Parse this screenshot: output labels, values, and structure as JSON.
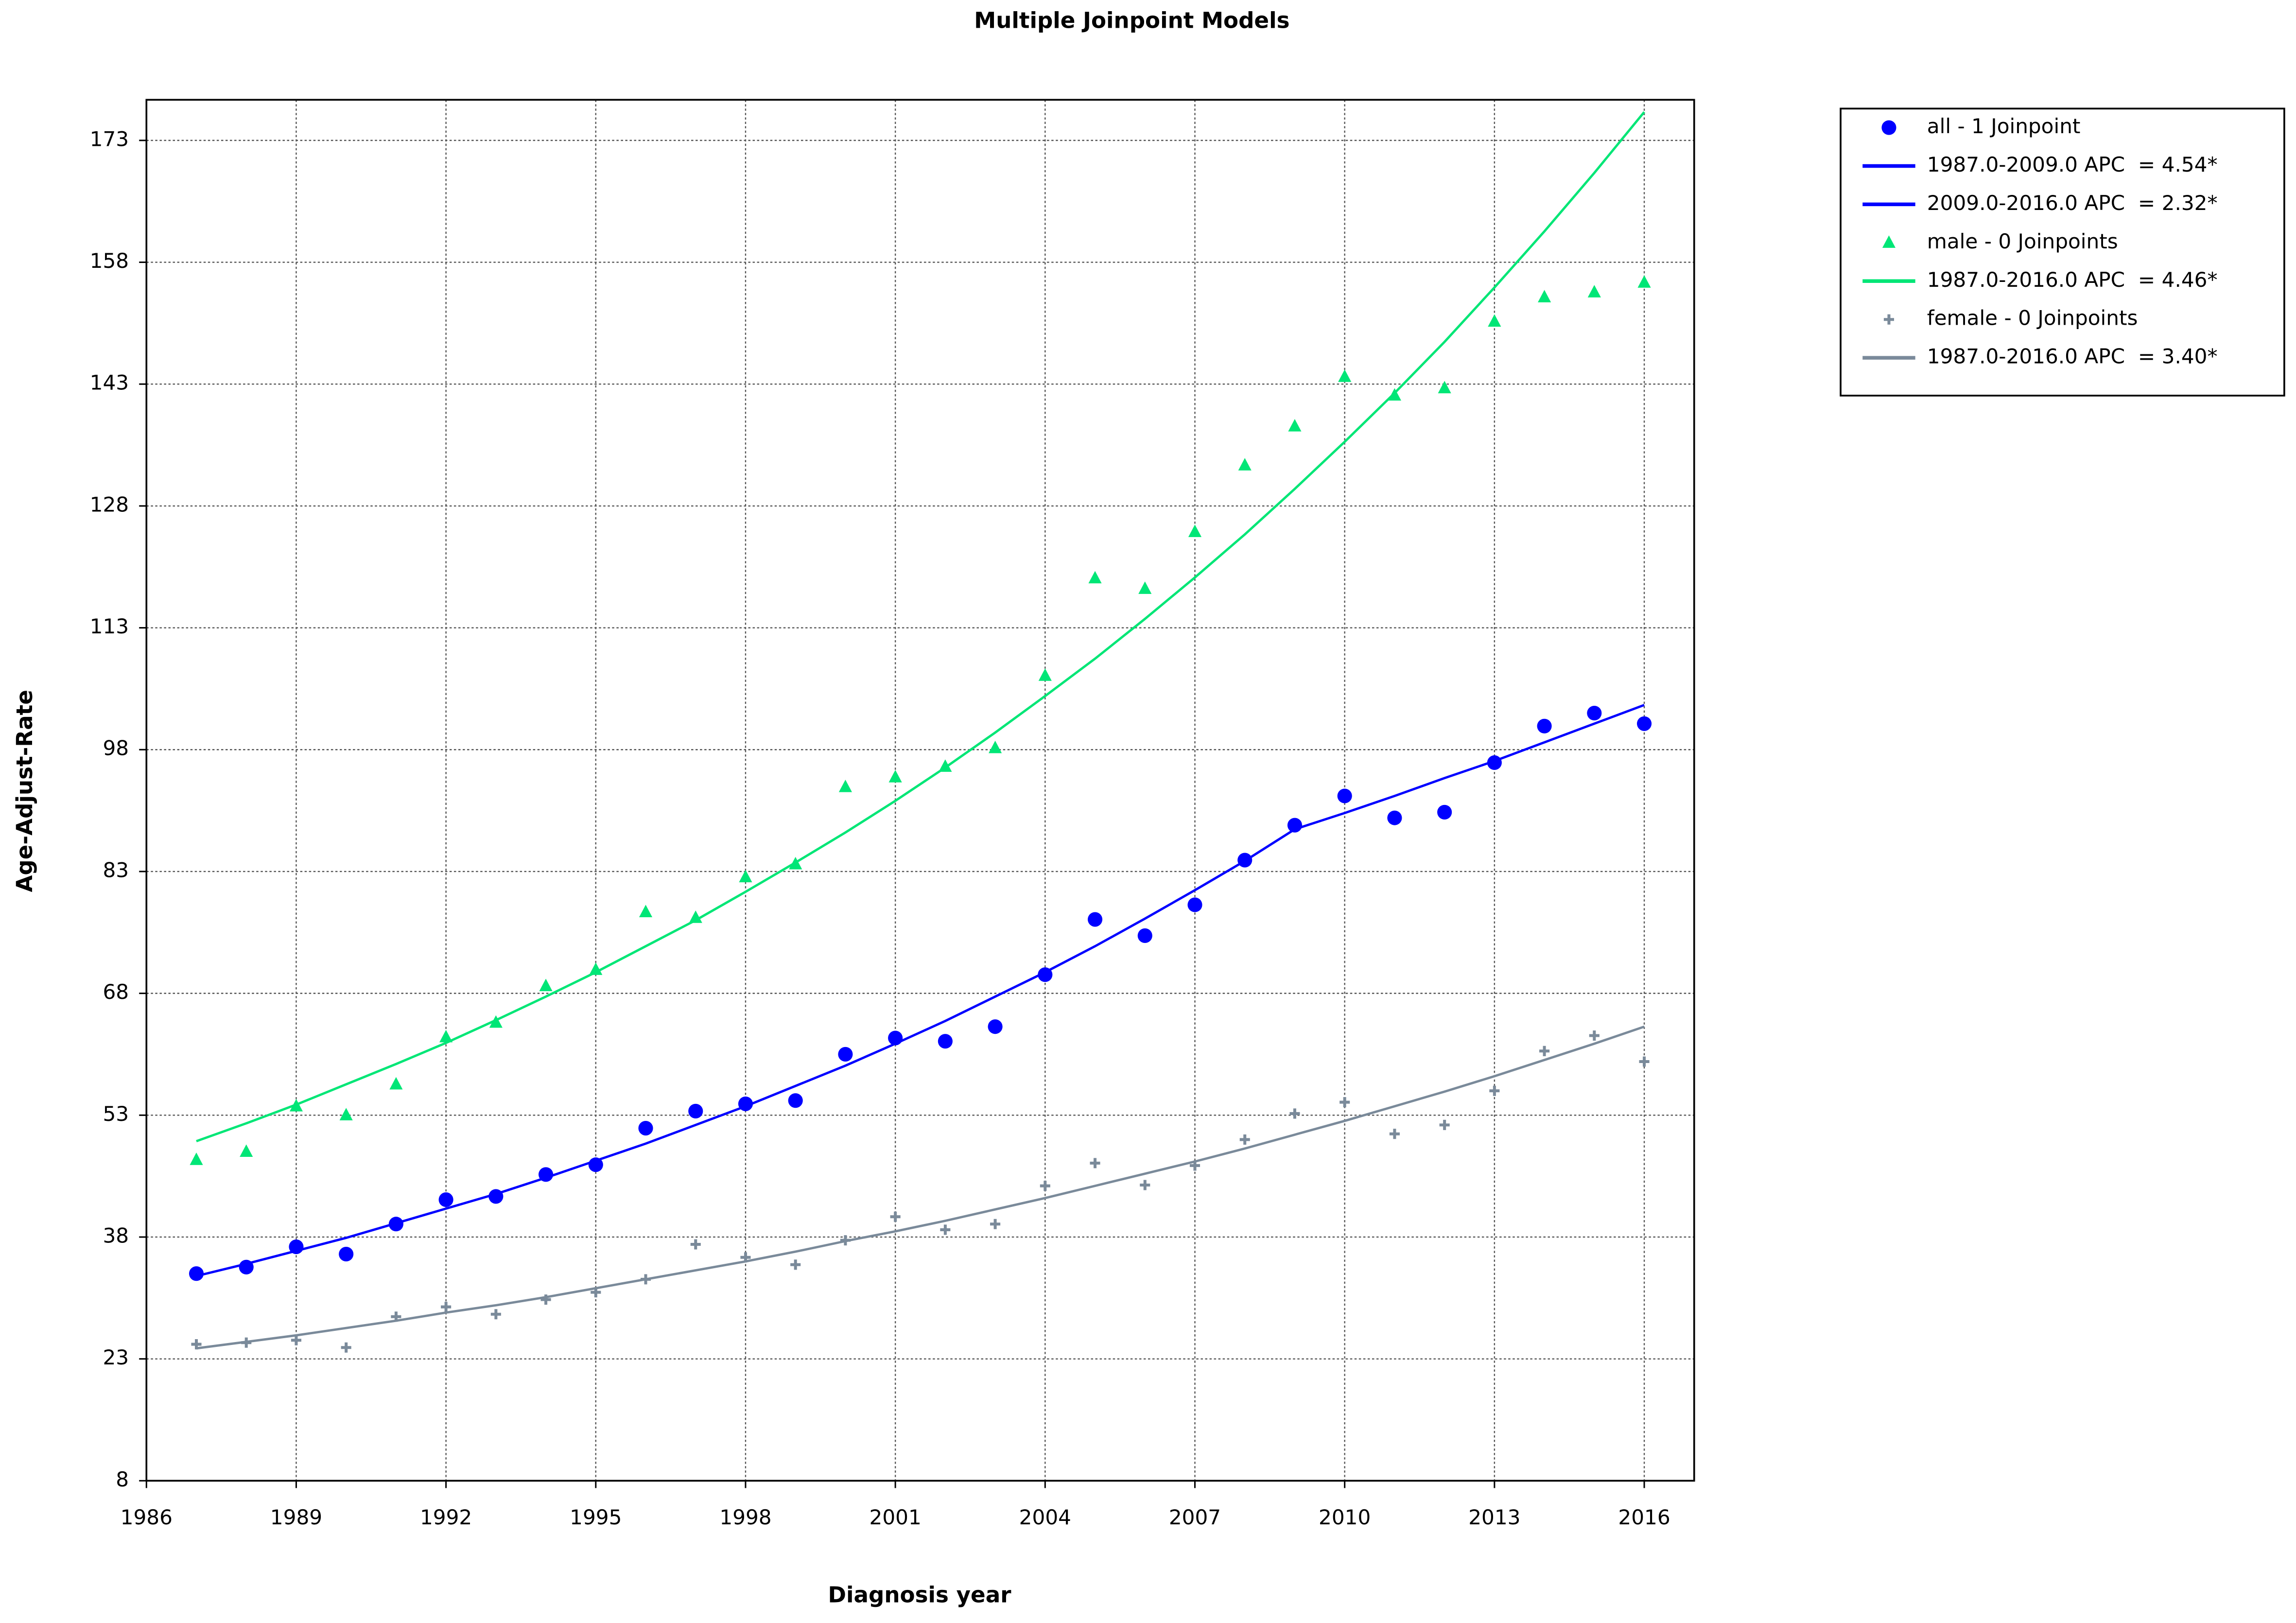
{
  "chart_data": {
    "type": "scatter",
    "title": "Multiple Joinpoint Models",
    "xlabel": "Diagnosis year",
    "ylabel": "Age-Adjust-Rate",
    "xlim": [
      1986,
      2017
    ],
    "ylim": [
      8,
      178
    ],
    "xticks": [
      1986,
      1989,
      1992,
      1995,
      1998,
      2001,
      2004,
      2007,
      2010,
      2013,
      2016
    ],
    "yticks": [
      8,
      23,
      38,
      53,
      68,
      83,
      98,
      113,
      128,
      143,
      158,
      173
    ],
    "grid": true,
    "legend": "right",
    "series": [
      {
        "name": "all - 1 Joinpoint",
        "color": "#0000ff",
        "marker": "circle",
        "x": [
          1987,
          1988,
          1989,
          1990,
          1991,
          1992,
          1993,
          1994,
          1995,
          1996,
          1997,
          1998,
          1999,
          2000,
          2001,
          2002,
          2003,
          2004,
          2005,
          2006,
          2007,
          2008,
          2009,
          2010,
          2011,
          2012,
          2013,
          2014,
          2015,
          2016
        ],
        "values": [
          33.5,
          34.3,
          36.8,
          35.9,
          39.6,
          42.6,
          43.0,
          45.7,
          46.9,
          51.4,
          53.5,
          54.4,
          54.8,
          60.5,
          62.5,
          62.1,
          63.9,
          70.3,
          77.1,
          75.1,
          78.9,
          84.4,
          88.7,
          92.3,
          89.6,
          90.3,
          96.4,
          100.9,
          102.5,
          101.2
        ]
      },
      {
        "name": "1987.0-2009.0 APC  = 4.54*",
        "color": "#0000ff",
        "marker": "line",
        "x": [
          1987,
          1988,
          1989,
          1990,
          1991,
          1992,
          1993,
          1994,
          1995,
          1996,
          1997,
          1998,
          1999,
          2000,
          2001,
          2002,
          2003,
          2004,
          2005,
          2006,
          2007,
          2008,
          2009
        ],
        "values": [
          33.2,
          34.7,
          36.3,
          37.9,
          39.7,
          41.5,
          43.3,
          45.3,
          47.4,
          49.5,
          51.8,
          54.1,
          56.6,
          59.1,
          61.8,
          64.6,
          67.6,
          70.6,
          73.8,
          77.2,
          80.7,
          84.3,
          88.2
        ]
      },
      {
        "name": "2009.0-2016.0 APC  = 2.32*",
        "color": "#0000ff",
        "marker": "line",
        "x": [
          2009,
          2010,
          2011,
          2012,
          2013,
          2014,
          2015,
          2016
        ],
        "values": [
          88.2,
          90.2,
          92.3,
          94.5,
          96.6,
          98.9,
          101.2,
          103.5
        ]
      },
      {
        "name": "male - 0 Joinpoints",
        "color": "#00e676",
        "marker": "triangle",
        "x": [
          1987,
          1988,
          1989,
          1990,
          1991,
          1992,
          1993,
          1994,
          1995,
          1996,
          1997,
          1998,
          1999,
          2000,
          2001,
          2002,
          2003,
          2004,
          2005,
          2006,
          2007,
          2008,
          2009,
          2010,
          2011,
          2012,
          2013,
          2014,
          2015,
          2016
        ],
        "values": [
          47.5,
          48.5,
          54.1,
          53.0,
          56.8,
          62.6,
          64.4,
          68.9,
          70.9,
          78.0,
          77.3,
          82.3,
          83.9,
          93.4,
          94.6,
          95.9,
          98.2,
          107.1,
          119.1,
          117.8,
          124.8,
          133.0,
          137.8,
          143.9,
          141.6,
          142.5,
          150.7,
          153.7,
          154.3,
          155.5
        ]
      },
      {
        "name": "1987.0-2016.0 APC  = 4.46*",
        "color": "#00e676",
        "marker": "line",
        "x": [
          1987,
          1988,
          1989,
          1990,
          1991,
          1992,
          1993,
          1994,
          1995,
          1996,
          1997,
          1998,
          1999,
          2000,
          2001,
          2002,
          2003,
          2004,
          2005,
          2006,
          2007,
          2008,
          2009,
          2010,
          2011,
          2012,
          2013,
          2014,
          2015,
          2016
        ],
        "values": [
          49.8,
          52.0,
          54.3,
          56.8,
          59.3,
          61.9,
          64.7,
          67.6,
          70.6,
          73.8,
          77.0,
          80.5,
          84.1,
          87.8,
          91.7,
          95.8,
          100.1,
          104.6,
          109.2,
          114.1,
          119.2,
          124.5,
          130.1,
          135.9,
          141.9,
          148.2,
          154.9,
          161.8,
          169.0,
          176.5
        ]
      },
      {
        "name": "female - 0 Joinpoints",
        "color": "#7a8a9a",
        "marker": "plus",
        "x": [
          1987,
          1988,
          1989,
          1990,
          1991,
          1992,
          1993,
          1994,
          1995,
          1996,
          1997,
          1998,
          1999,
          2000,
          2001,
          2002,
          2003,
          2004,
          2005,
          2006,
          2007,
          2008,
          2009,
          2010,
          2011,
          2012,
          2013,
          2014,
          2015,
          2016
        ],
        "values": [
          24.8,
          25.0,
          25.3,
          24.4,
          28.2,
          29.4,
          28.5,
          30.3,
          31.2,
          32.8,
          37.1,
          35.5,
          34.6,
          37.6,
          40.5,
          38.9,
          39.6,
          44.3,
          47.1,
          44.4,
          46.8,
          50.0,
          53.2,
          54.6,
          50.7,
          51.8,
          56.0,
          60.9,
          62.8,
          59.6
        ]
      },
      {
        "name": "1987.0-2016.0 APC  = 3.40*",
        "color": "#7a8a9a",
        "marker": "line",
        "x": [
          1987,
          1988,
          1989,
          1990,
          1991,
          1992,
          1993,
          1994,
          1995,
          1996,
          1997,
          1998,
          1999,
          2000,
          2001,
          2002,
          2003,
          2004,
          2005,
          2006,
          2007,
          2008,
          2009,
          2010,
          2011,
          2012,
          2013,
          2014,
          2015,
          2016
        ],
        "values": [
          24.3,
          25.1,
          25.9,
          26.8,
          27.7,
          28.7,
          29.6,
          30.6,
          31.7,
          32.8,
          33.9,
          35.0,
          36.2,
          37.5,
          38.7,
          40.0,
          41.4,
          42.8,
          44.3,
          45.8,
          47.3,
          48.9,
          50.6,
          52.3,
          54.1,
          55.9,
          57.8,
          59.8,
          61.8,
          63.9
        ]
      }
    ]
  }
}
